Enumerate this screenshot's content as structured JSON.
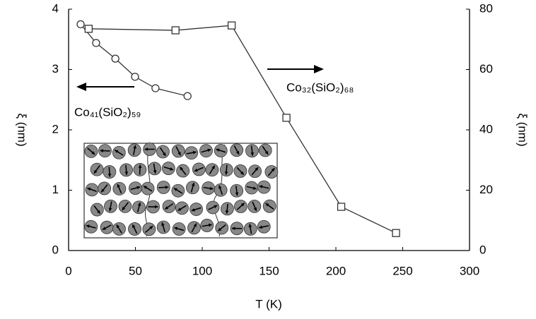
{
  "chart_data": {
    "type": "line",
    "x_label": "T (K)",
    "y_label": "ξ (nm)",
    "y2_label": "ξ (nm)",
    "xlim": [
      0,
      300
    ],
    "xticks": [
      0,
      50,
      100,
      150,
      200,
      250,
      300
    ],
    "ylim": [
      0,
      4
    ],
    "yticks": [
      0,
      1,
      2,
      3,
      4
    ],
    "y2lim": [
      0,
      80
    ],
    "y2ticks": [
      0,
      20,
      40,
      60,
      80
    ],
    "grid": false,
    "series": [
      {
        "name": "Co₄₁(SiO₂)₅₉",
        "color": "#333333",
        "marker": "circle",
        "x": [
          9,
          20.6,
          35,
          49.7,
          65,
          89
        ],
        "values": [
          3.75,
          3.44,
          3.18,
          2.88,
          2.69,
          2.56
        ]
      },
      {
        "name": "Co₃₂(SiO₂)₆₈",
        "color": "#333333",
        "marker": "square",
        "axis": "y2",
        "x": [
          15,
          80,
          122,
          163,
          204,
          245
        ],
        "values": [
          73.5,
          73,
          74.6,
          44,
          14.5,
          5.8
        ]
      }
    ]
  }
}
